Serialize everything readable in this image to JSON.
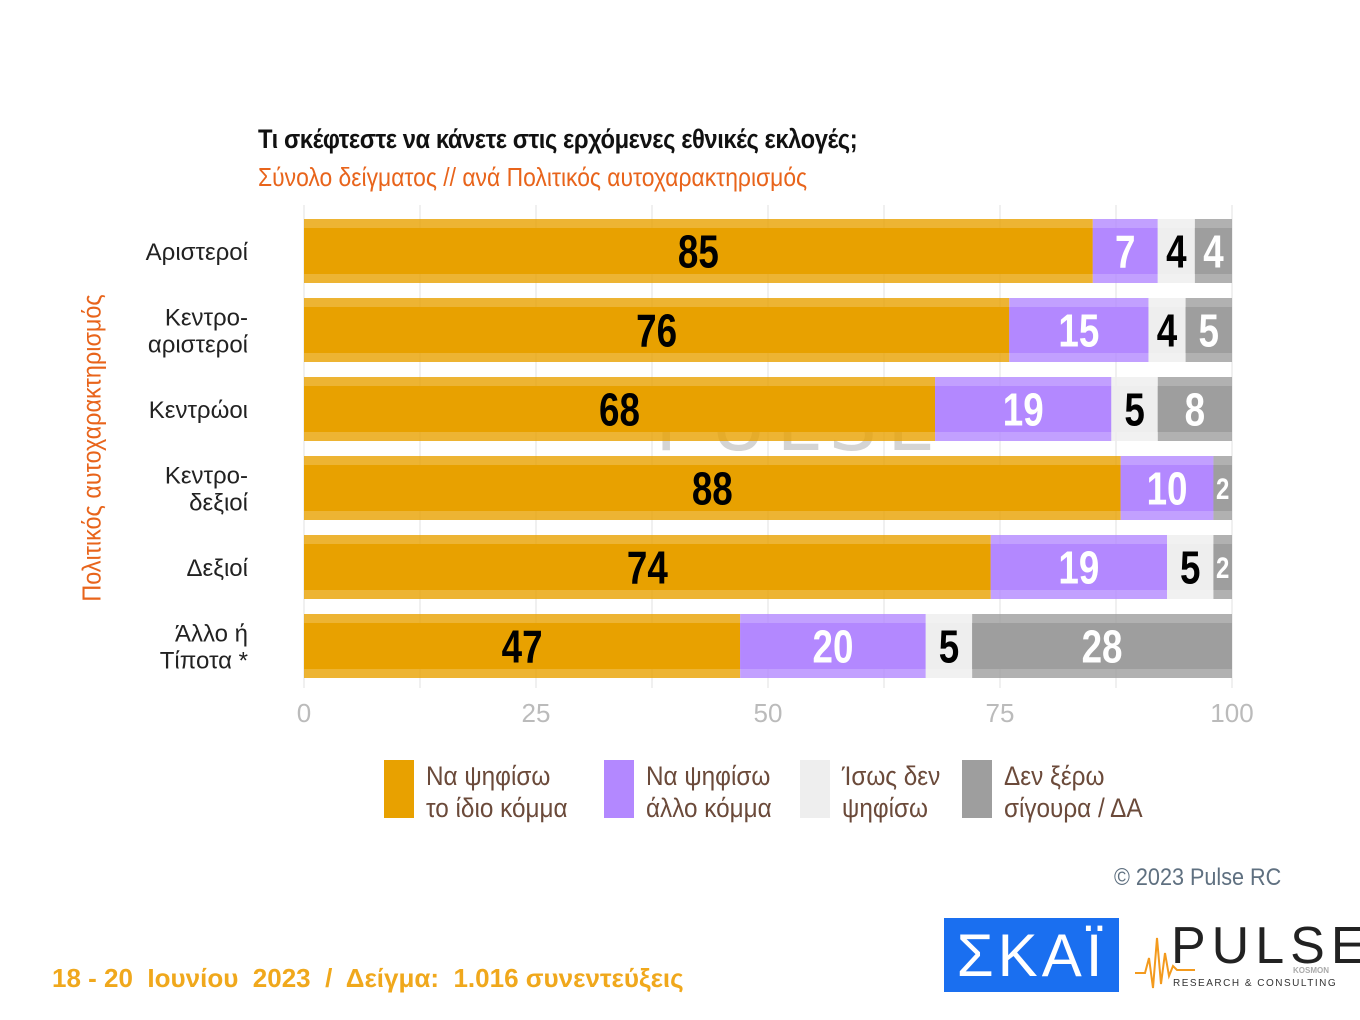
{
  "chart_data": {
    "type": "bar",
    "orientation": "horizontal",
    "stacked": true,
    "title": "Τι σκέφτεστε να κάνετε στις ερχόμενες εθνικές εκλογές;",
    "subtitle": "Σύνολο δείγματος // ανά Πολιτικός αυτοχαρακτηρισμός",
    "ylabel": "Πολιτικός αυτοχαρακτηρισμός",
    "categories": [
      "Αριστεροί",
      "Κεντρο-\nαριστεροί",
      "Κεντρώοι",
      "Κεντρο-\nδεξιοί",
      "Δεξιοί",
      "Άλλο ή\nΤίποτα *"
    ],
    "series": [
      {
        "name": "Να ψηφίσω\nτο ίδιο κόμμα",
        "color": "#e8a100",
        "label_color": "#000000",
        "values": [
          85,
          76,
          68,
          88,
          74,
          47
        ]
      },
      {
        "name": "Να ψηφίσω\nάλλο κόμμα",
        "color": "#b388ff",
        "label_color": "#ffffff",
        "values": [
          7,
          15,
          19,
          10,
          19,
          20
        ]
      },
      {
        "name": "Ίσως δεν\nψηφίσω",
        "color": "#eeeeee",
        "label_color": "#000000",
        "values": [
          4,
          4,
          5,
          0,
          5,
          5
        ]
      },
      {
        "name": "Δεν ξέρω\nσίγουρα / ΔΑ",
        "color": "#9e9e9e",
        "label_color": "#ffffff",
        "values": [
          4,
          5,
          8,
          2,
          2,
          28
        ]
      }
    ],
    "xlim": [
      0,
      100
    ],
    "xticks": [
      0,
      25,
      50,
      75,
      100
    ],
    "grid": true,
    "legend_placement": "bottom"
  },
  "watermark": "PULSE RESEARCH & CONSULTING",
  "copyright": "© 2023 Pulse RC",
  "footer": "18 - 20  Ιουνίου  2023  /  Δείγμα:  1.016 συνεντεύξεις",
  "logos": {
    "skai": "ΣΚΑΪ",
    "pulse": "PULSE",
    "pulse_kosmon": "KOSMON",
    "pulse_tag": "RESEARCH & CONSULTING"
  }
}
